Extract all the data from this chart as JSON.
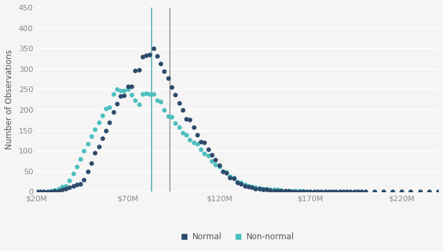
{
  "title": "",
  "ylabel": "Number of Observations",
  "xlabel": "",
  "xlim": [
    20,
    240
  ],
  "ylim": [
    0,
    450
  ],
  "yticks": [
    0,
    50,
    100,
    150,
    200,
    250,
    300,
    350,
    400,
    450
  ],
  "xtick_labels": [
    "$20M",
    "$70M",
    "$120M",
    "$170M",
    "$220M"
  ],
  "xtick_positions": [
    20,
    70,
    120,
    170,
    220
  ],
  "vline1": 83,
  "vline2": 93,
  "vline_color": "#5aacaa",
  "normal_color": "#2d4a6b",
  "nonnormal_color": "#4bbfbe",
  "bg_color": "#f5f5f5",
  "grid_color": "#ffffff",
  "normal_x": [
    20,
    22,
    24,
    26,
    28,
    30,
    32,
    34,
    36,
    38,
    40,
    42,
    44,
    46,
    48,
    50,
    52,
    54,
    56,
    58,
    60,
    62,
    64,
    66,
    68,
    70,
    72,
    74,
    76,
    78,
    80,
    82,
    84,
    86,
    88,
    90,
    92,
    94,
    96,
    98,
    100,
    102,
    104,
    106,
    108,
    110,
    112,
    114,
    116,
    118,
    120,
    122,
    124,
    126,
    128,
    130,
    132,
    134,
    136,
    138,
    140,
    142,
    144,
    146,
    148,
    150,
    152,
    154,
    156,
    158,
    160,
    162,
    164,
    166,
    168,
    170,
    172,
    174,
    176,
    178,
    180,
    182,
    184,
    186,
    188,
    190,
    192,
    194,
    196,
    198,
    200,
    205,
    210,
    215,
    220,
    225,
    230,
    235,
    240
  ],
  "normal_y": [
    0,
    0,
    0,
    0,
    1,
    2,
    3,
    5,
    8,
    11,
    14,
    17,
    20,
    30,
    50,
    70,
    95,
    110,
    130,
    150,
    170,
    195,
    215,
    233,
    235,
    257,
    258,
    297,
    298,
    330,
    334,
    335,
    350,
    331,
    313,
    294,
    277,
    256,
    237,
    216,
    200,
    178,
    176,
    158,
    140,
    122,
    120,
    104,
    90,
    78,
    65,
    50,
    47,
    35,
    33,
    22,
    20,
    15,
    12,
    10,
    8,
    7,
    6,
    5,
    4,
    3,
    3,
    2,
    2,
    2,
    1,
    1,
    1,
    1,
    1,
    1,
    1,
    0,
    0,
    0,
    0,
    0,
    0,
    0,
    0,
    0,
    0,
    0,
    0,
    0,
    0,
    0,
    0,
    0,
    0,
    0,
    0,
    0,
    0
  ],
  "nonnormal_x": [
    20,
    22,
    24,
    26,
    28,
    30,
    32,
    34,
    36,
    38,
    40,
    42,
    44,
    46,
    48,
    50,
    52,
    54,
    56,
    58,
    60,
    62,
    64,
    66,
    68,
    70,
    72,
    74,
    76,
    78,
    80,
    82,
    84,
    86,
    88,
    90,
    92,
    94,
    96,
    98,
    100,
    102,
    104,
    106,
    108,
    110,
    112,
    114,
    116,
    118,
    120,
    122,
    124,
    126,
    128,
    130,
    132,
    134,
    136,
    138,
    140,
    142,
    144,
    146,
    148,
    150,
    152,
    154,
    156,
    158,
    160,
    162,
    164,
    166,
    168,
    170,
    172,
    174,
    176,
    178,
    180,
    182,
    184,
    186,
    188,
    190,
    192,
    194,
    196,
    198,
    200,
    205,
    210,
    215,
    220,
    225,
    230,
    235,
    240
  ],
  "nonnormal_y": [
    0,
    0,
    0,
    1,
    2,
    4,
    7,
    13,
    15,
    28,
    45,
    62,
    80,
    100,
    118,
    135,
    153,
    170,
    187,
    204,
    206,
    238,
    250,
    248,
    248,
    251,
    237,
    224,
    214,
    239,
    240,
    239,
    238,
    224,
    220,
    200,
    185,
    183,
    168,
    157,
    145,
    140,
    127,
    121,
    117,
    104,
    93,
    88,
    75,
    67,
    62,
    50,
    48,
    38,
    35,
    25,
    22,
    18,
    15,
    13,
    11,
    9,
    8,
    7,
    6,
    5,
    5,
    4,
    3,
    3,
    3,
    2,
    2,
    2,
    1,
    1,
    1,
    1,
    1,
    1,
    0,
    0,
    0,
    0,
    0,
    0,
    0,
    0,
    0,
    0,
    0,
    0,
    0,
    0,
    0,
    0,
    0,
    0,
    0
  ],
  "legend_normal_label": "Normal",
  "legend_nonnormal_label": "Non-normal",
  "marker_size": 4
}
